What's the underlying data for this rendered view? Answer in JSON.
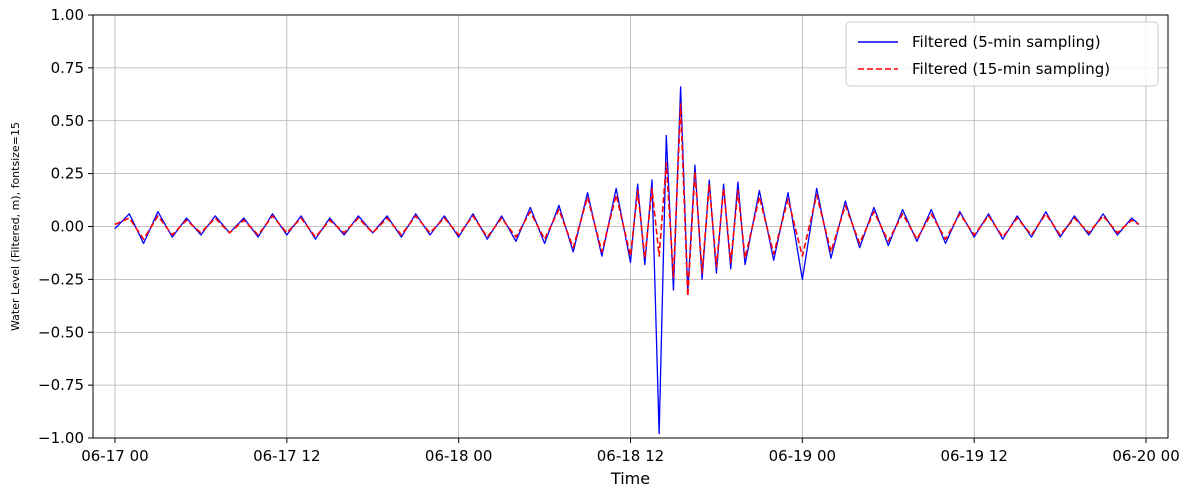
{
  "chart_data": {
    "type": "line",
    "xlabel": "Time",
    "ylabel": "Water Level (Filtered, m), fontsize=15",
    "x_range": [
      "06-16 22:28",
      "06-20 01:32"
    ],
    "ylim": [
      -1.0,
      1.0
    ],
    "x_ticks": [
      {
        "t": "06-17 00:00",
        "label": "06-17 00"
      },
      {
        "t": "06-17 12:00",
        "label": "06-17 12"
      },
      {
        "t": "06-18 00:00",
        "label": "06-18 00"
      },
      {
        "t": "06-18 12:00",
        "label": "06-18 12"
      },
      {
        "t": "06-19 00:00",
        "label": "06-19 00"
      },
      {
        "t": "06-19 12:00",
        "label": "06-19 12"
      },
      {
        "t": "06-20 00:00",
        "label": "06-20 00"
      }
    ],
    "y_ticks": [
      {
        "v": 1.0,
        "label": "1.00"
      },
      {
        "v": 0.75,
        "label": "0.75"
      },
      {
        "v": 0.5,
        "label": "0.50"
      },
      {
        "v": 0.25,
        "label": "0.25"
      },
      {
        "v": 0.0,
        "label": "0.00"
      },
      {
        "v": -0.25,
        "label": "−0.25"
      },
      {
        "v": -0.5,
        "label": "−0.50"
      },
      {
        "v": -0.75,
        "label": "−0.75"
      },
      {
        "v": -1.0,
        "label": "−1.00"
      }
    ],
    "grid": true,
    "legend_position": "top-right",
    "series": [
      {
        "name": "Filtered (5-min sampling)",
        "color": "#0000ff",
        "style": "solid",
        "x": [
          "06-17 00:00",
          "06-17 01:00",
          "06-17 02:00",
          "06-17 03:00",
          "06-17 04:00",
          "06-17 05:00",
          "06-17 06:00",
          "06-17 07:00",
          "06-17 08:00",
          "06-17 09:00",
          "06-17 10:00",
          "06-17 11:00",
          "06-17 12:00",
          "06-17 13:00",
          "06-17 14:00",
          "06-17 15:00",
          "06-17 16:00",
          "06-17 17:00",
          "06-17 18:00",
          "06-17 19:00",
          "06-17 20:00",
          "06-17 21:00",
          "06-17 22:00",
          "06-17 23:00",
          "06-18 00:00",
          "06-18 01:00",
          "06-18 02:00",
          "06-18 03:00",
          "06-18 04:00",
          "06-18 05:00",
          "06-18 06:00",
          "06-18 07:00",
          "06-18 08:00",
          "06-18 09:00",
          "06-18 10:00",
          "06-18 11:00",
          "06-18 12:00",
          "06-18 12:30",
          "06-18 13:00",
          "06-18 13:30",
          "06-18 14:00",
          "06-18 14:30",
          "06-18 15:00",
          "06-18 15:30",
          "06-18 16:00",
          "06-18 16:30",
          "06-18 17:00",
          "06-18 17:30",
          "06-18 18:00",
          "06-18 18:30",
          "06-18 19:00",
          "06-18 19:30",
          "06-18 20:00",
          "06-18 21:00",
          "06-18 22:00",
          "06-18 23:00",
          "06-19 00:00",
          "06-19 01:00",
          "06-19 02:00",
          "06-19 03:00",
          "06-19 04:00",
          "06-19 05:00",
          "06-19 06:00",
          "06-19 07:00",
          "06-19 08:00",
          "06-19 09:00",
          "06-19 10:00",
          "06-19 11:00",
          "06-19 12:00",
          "06-19 13:00",
          "06-19 14:00",
          "06-19 15:00",
          "06-19 16:00",
          "06-19 17:00",
          "06-19 18:00",
          "06-19 19:00",
          "06-19 20:00",
          "06-19 21:00",
          "06-19 22:00",
          "06-19 23:00",
          "06-19 23:30"
        ],
        "y": [
          -0.01,
          0.06,
          -0.08,
          0.07,
          -0.05,
          0.04,
          -0.04,
          0.05,
          -0.03,
          0.04,
          -0.05,
          0.06,
          -0.04,
          0.05,
          -0.06,
          0.04,
          -0.04,
          0.05,
          -0.03,
          0.05,
          -0.05,
          0.06,
          -0.04,
          0.05,
          -0.05,
          0.06,
          -0.06,
          0.05,
          -0.07,
          0.09,
          -0.08,
          0.1,
          -0.12,
          0.16,
          -0.14,
          0.18,
          -0.17,
          0.2,
          -0.18,
          0.22,
          -0.98,
          0.43,
          -0.3,
          0.66,
          -0.31,
          0.29,
          -0.25,
          0.22,
          -0.22,
          0.2,
          -0.2,
          0.21,
          -0.18,
          0.17,
          -0.16,
          0.16,
          -0.25,
          0.18,
          -0.15,
          0.12,
          -0.1,
          0.09,
          -0.09,
          0.08,
          -0.07,
          0.08,
          -0.08,
          0.07,
          -0.05,
          0.06,
          -0.06,
          0.05,
          -0.05,
          0.07,
          -0.05,
          0.05,
          -0.04,
          0.06,
          -0.04,
          0.04,
          0.01
        ]
      },
      {
        "name": "Filtered (15-min sampling)",
        "color": "#ff0000",
        "style": "dashed",
        "x": [
          "06-17 00:00",
          "06-17 01:00",
          "06-17 02:00",
          "06-17 03:00",
          "06-17 04:00",
          "06-17 05:00",
          "06-17 06:00",
          "06-17 07:00",
          "06-17 08:00",
          "06-17 09:00",
          "06-17 10:00",
          "06-17 11:00",
          "06-17 12:00",
          "06-17 13:00",
          "06-17 14:00",
          "06-17 15:00",
          "06-17 16:00",
          "06-17 17:00",
          "06-17 18:00",
          "06-17 19:00",
          "06-17 20:00",
          "06-17 21:00",
          "06-17 22:00",
          "06-17 23:00",
          "06-18 00:00",
          "06-18 01:00",
          "06-18 02:00",
          "06-18 03:00",
          "06-18 04:00",
          "06-18 05:00",
          "06-18 06:00",
          "06-18 07:00",
          "06-18 08:00",
          "06-18 09:00",
          "06-18 10:00",
          "06-18 11:00",
          "06-18 12:00",
          "06-18 12:30",
          "06-18 13:00",
          "06-18 13:30",
          "06-18 14:00",
          "06-18 14:30",
          "06-18 15:00",
          "06-18 15:30",
          "06-18 16:00",
          "06-18 16:30",
          "06-18 17:00",
          "06-18 17:30",
          "06-18 18:00",
          "06-18 18:30",
          "06-18 19:00",
          "06-18 19:30",
          "06-18 20:00",
          "06-18 21:00",
          "06-18 22:00",
          "06-18 23:00",
          "06-19 00:00",
          "06-19 01:00",
          "06-19 02:00",
          "06-19 03:00",
          "06-19 04:00",
          "06-19 05:00",
          "06-19 06:00",
          "06-19 07:00",
          "06-19 08:00",
          "06-19 09:00",
          "06-19 10:00",
          "06-19 11:00",
          "06-19 12:00",
          "06-19 13:00",
          "06-19 14:00",
          "06-19 15:00",
          "06-19 16:00",
          "06-19 17:00",
          "06-19 18:00",
          "06-19 19:00",
          "06-19 20:00",
          "06-19 21:00",
          "06-19 22:00",
          "06-19 23:00",
          "06-19 23:30"
        ],
        "y": [
          0.01,
          0.04,
          -0.06,
          0.05,
          -0.04,
          0.03,
          -0.03,
          0.04,
          -0.03,
          0.03,
          -0.04,
          0.05,
          -0.03,
          0.04,
          -0.05,
          0.03,
          -0.03,
          0.04,
          -0.03,
          0.04,
          -0.04,
          0.05,
          -0.03,
          0.04,
          -0.04,
          0.05,
          -0.05,
          0.04,
          -0.05,
          0.07,
          -0.06,
          0.08,
          -0.1,
          0.14,
          -0.12,
          0.15,
          -0.14,
          0.17,
          -0.15,
          0.18,
          -0.14,
          0.3,
          -0.24,
          0.58,
          -0.33,
          0.26,
          -0.22,
          0.2,
          -0.19,
          0.18,
          -0.17,
          0.17,
          -0.15,
          0.14,
          -0.13,
          0.13,
          -0.14,
          0.15,
          -0.12,
          0.1,
          -0.08,
          0.07,
          -0.07,
          0.06,
          -0.06,
          0.06,
          -0.06,
          0.06,
          -0.04,
          0.05,
          -0.05,
          0.04,
          -0.04,
          0.06,
          -0.04,
          0.04,
          -0.03,
          0.05,
          -0.03,
          0.03,
          0.01
        ]
      }
    ]
  }
}
